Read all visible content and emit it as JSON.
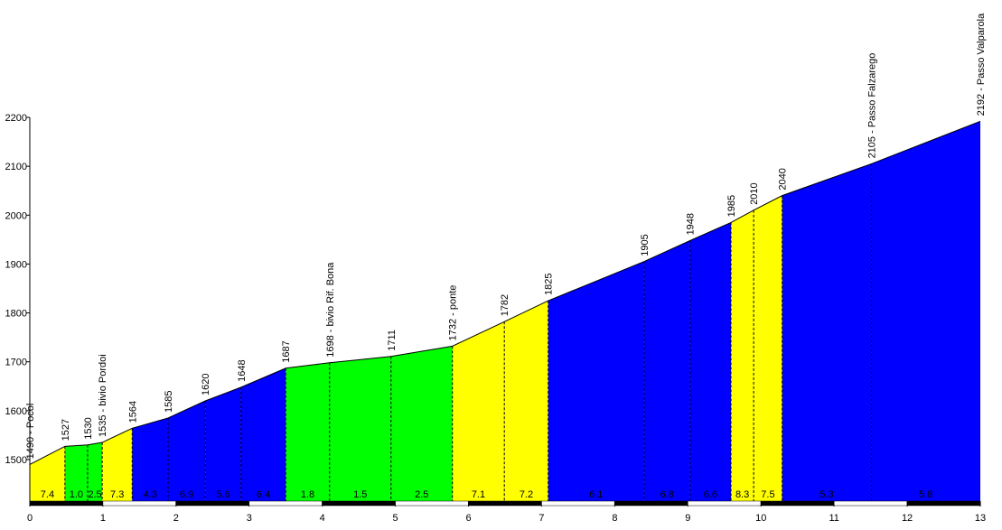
{
  "chart_data": {
    "type": "area",
    "x": [
      0,
      0.48,
      0.79,
      0.99,
      1.4,
      1.89,
      2.4,
      2.89,
      3.5,
      4.1,
      4.94,
      5.78,
      6.49,
      7.09,
      8.4,
      9.03,
      9.59,
      9.9,
      10.29,
      11.51,
      13
    ],
    "values": [
      1490,
      1527,
      1530,
      1535,
      1564,
      1585,
      1620,
      1648,
      1687,
      1698,
      1711,
      1732,
      1782,
      1825,
      1905,
      1948,
      1985,
      2010,
      2040,
      2105,
      2192
    ],
    "point_labels": [
      "1490 - Pocol",
      "1527",
      "1530",
      "1535 - bivio Pordoi",
      "1564",
      "1585",
      "1620",
      "1648",
      "1687",
      "1698 - bivio Rif. Bona",
      "1711",
      "1732 - ponte",
      "1782",
      "1825",
      "1905",
      "1948",
      "1985",
      "2010",
      "2040",
      "2105 - Passo Falzarego",
      "2192 - Passo Valparola"
    ],
    "gradient_labels": [
      "7.4",
      "1.0",
      "2.5",
      "7.3",
      "4.3",
      "6.9",
      "5.6",
      "6.4",
      "1.8",
      "1.5",
      "2.5",
      "7.1",
      "7.2",
      "6.1",
      "6.8",
      "6.6",
      "8.3",
      "7.5",
      "5.3",
      "5.8"
    ],
    "segment_colors": [
      "#ffff00",
      "#00ff00",
      "#00ff00",
      "#ffff00",
      "#0000ff",
      "#0000ff",
      "#0000ff",
      "#0000ff",
      "#00ff00",
      "#00ff00",
      "#00ff00",
      "#ffff00",
      "#ffff00",
      "#0000ff",
      "#0000ff",
      "#0000ff",
      "#ffff00",
      "#ffff00",
      "#0000ff",
      "#0000ff"
    ],
    "xlim": [
      0,
      13
    ],
    "xticks": [
      0,
      1,
      2,
      3,
      4,
      5,
      6,
      7,
      8,
      9,
      10,
      11,
      12,
      13
    ],
    "ylim": [
      1415,
      2200
    ],
    "yticks": [
      1500,
      1600,
      1700,
      1800,
      1900,
      2000,
      2100,
      2200
    ]
  }
}
